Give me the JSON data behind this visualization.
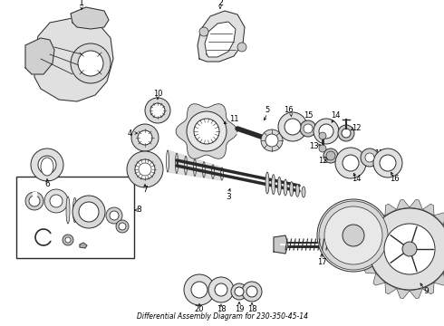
{
  "title": "Differential Assembly Diagram for 230-350-45-14",
  "bg_color": "#ffffff",
  "line_color": "#2a2a2a",
  "fig_width": 4.9,
  "fig_height": 3.6,
  "dpi": 100
}
